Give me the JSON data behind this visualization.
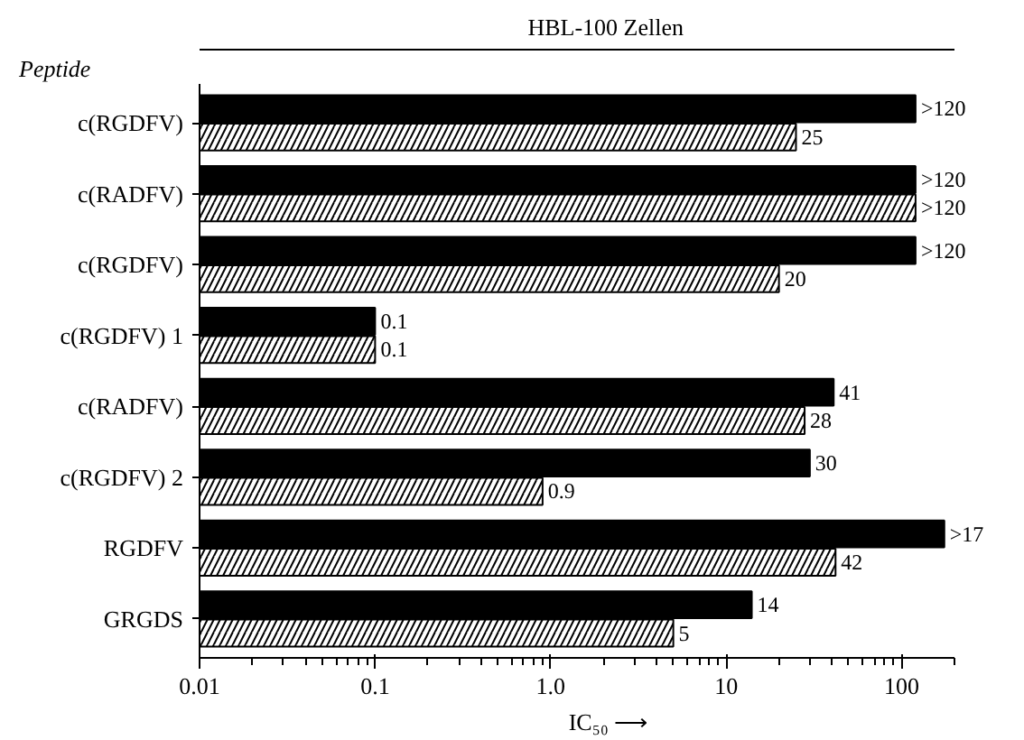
{
  "chart_data": {
    "type": "bar",
    "orientation": "horizontal",
    "title": "HBL-100  Zellen",
    "ylabel": "Peptide",
    "xlabel": "IC₅₀ ⟶",
    "categories": [
      "c(RGDFV)",
      "c(RADFV)",
      "c(RGDFV)",
      "c(RGDFV) 1",
      "c(RADFV)",
      "c(RGDFV) 2",
      "RGDFV",
      "GRGDS"
    ],
    "series": [
      {
        "color": "#000000",
        "values": [
          120,
          120,
          120,
          0.1,
          41,
          30,
          175,
          14
        ],
        "value_labels": [
          ">120",
          ">120",
          ">120",
          "0.1",
          "41",
          "30",
          ">17",
          "14"
        ]
      },
      {
        "color": "#ffffff",
        "values": [
          25,
          120,
          20,
          0.1,
          28,
          0.9,
          42,
          5
        ],
        "value_labels": [
          "25",
          ">120",
          "20",
          "0.1",
          "28",
          "0.9",
          "42",
          "5"
        ]
      }
    ],
    "log": "x",
    "xlim": [
      0.01,
      200
    ],
    "xticks": [
      0.01,
      0.1,
      {
        "value": 1,
        "label": "1.0"
      },
      10,
      100
    ],
    "grid": false
  }
}
